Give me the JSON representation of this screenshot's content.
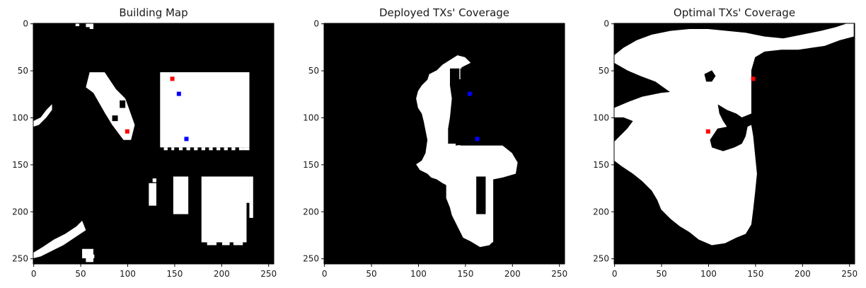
{
  "figure": {
    "panels": [
      {
        "id": "building",
        "title": "Building Map",
        "background": "#000000",
        "foreground": "#ffffff",
        "markers": [
          {
            "x": 148,
            "y": 59,
            "color": "#ff0000"
          },
          {
            "x": 100,
            "y": 115,
            "color": "#ff0000"
          },
          {
            "x": 155,
            "y": 75,
            "color": "#0000ff"
          },
          {
            "x": 163,
            "y": 123,
            "color": "#0000ff"
          }
        ]
      },
      {
        "id": "deployed",
        "title": "Deployed TXs' Coverage",
        "background": "#000000",
        "foreground": "#ffffff",
        "markers": [
          {
            "x": 155,
            "y": 75,
            "color": "#0000ff"
          },
          {
            "x": 163,
            "y": 123,
            "color": "#0000ff"
          }
        ]
      },
      {
        "id": "optimal",
        "title": "Optimal TXs' Coverage",
        "background": "#000000",
        "foreground": "#ffffff",
        "markers": [
          {
            "x": 148,
            "y": 59,
            "color": "#ff0000"
          },
          {
            "x": 100,
            "y": 115,
            "color": "#ff0000"
          }
        ]
      }
    ],
    "axes": {
      "xlim": [
        0,
        255
      ],
      "ylim": [
        255,
        0
      ],
      "x_ticks": [
        0,
        50,
        100,
        150,
        200,
        250
      ],
      "y_ticks": [
        0,
        50,
        100,
        150,
        200,
        250
      ]
    }
  }
}
